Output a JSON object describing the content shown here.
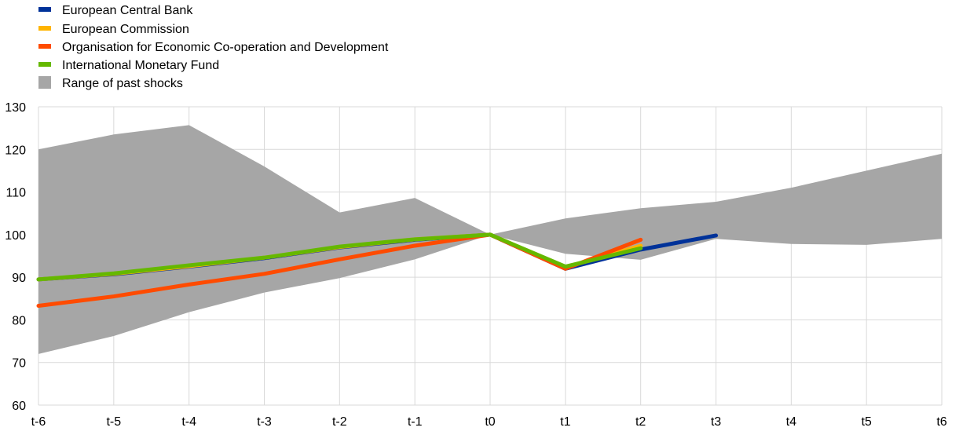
{
  "chart_data": {
    "type": "line",
    "title": "",
    "xlabel": "",
    "ylabel": "",
    "categories": [
      "t-6",
      "t-5",
      "t-4",
      "t-3",
      "t-2",
      "t-1",
      "t0",
      "t1",
      "t2",
      "t3",
      "t4",
      "t5",
      "t6"
    ],
    "ylim": [
      60,
      130
    ],
    "yticks": [
      60,
      70,
      80,
      90,
      100,
      110,
      120,
      130
    ],
    "grid": true,
    "legend_position": "top-left",
    "range": {
      "name": "Range of past shocks",
      "color": "#a6a6a6",
      "upper": [
        120,
        123.5,
        125.7,
        116,
        105.2,
        108.6,
        100,
        103.8,
        106.2,
        107.7,
        111,
        115,
        119
      ],
      "lower": [
        72,
        76.2,
        81.8,
        86.4,
        89.8,
        94.2,
        100,
        95.5,
        94.1,
        99,
        97.8,
        97.6,
        99
      ]
    },
    "series": [
      {
        "name": "European Central Bank",
        "color": "#003299",
        "values": [
          89.5,
          90.7,
          92.5,
          94.5,
          97,
          98.8,
          100,
          92,
          96.5,
          99.8,
          null,
          null,
          null
        ]
      },
      {
        "name": "European Commission",
        "color": "#ffb400",
        "values": [
          89.5,
          90.8,
          92.6,
          94.6,
          97.1,
          98.9,
          100,
          92.3,
          97.4,
          null,
          null,
          null,
          null
        ]
      },
      {
        "name": "Organisation for Economic Co-operation and Development",
        "color": "#ff4b00",
        "values": [
          83.3,
          85.5,
          88.3,
          90.8,
          94.2,
          97.4,
          100,
          92,
          98.8,
          null,
          null,
          null,
          null
        ]
      },
      {
        "name": "International Monetary Fund",
        "color": "#65b800",
        "values": [
          89.5,
          90.9,
          92.8,
          94.6,
          97.2,
          98.9,
          100,
          92.5,
          96.8,
          null,
          null,
          null,
          null
        ]
      }
    ]
  }
}
